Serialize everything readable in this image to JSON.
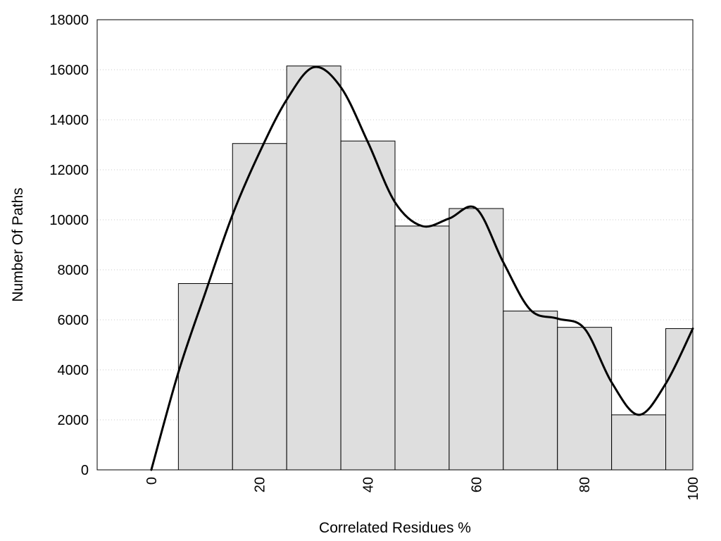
{
  "chart_data": {
    "type": "bar",
    "title": "",
    "xlabel": "Correlated Residues %",
    "ylabel": "Number Of Paths",
    "xlim": [
      -10,
      100
    ],
    "ylim": [
      0,
      18000
    ],
    "x_ticks": [
      "0",
      "20",
      "40",
      "60",
      "80",
      "100"
    ],
    "y_ticks": [
      "0",
      "2000",
      "4000",
      "6000",
      "8000",
      "10000",
      "12000",
      "14000",
      "16000",
      "18000"
    ],
    "grid": "horizontal dotted",
    "legend": "none",
    "bins": [
      {
        "start": 5,
        "end": 15,
        "value": 7450
      },
      {
        "start": 15,
        "end": 25,
        "value": 13050
      },
      {
        "start": 25,
        "end": 35,
        "value": 16150
      },
      {
        "start": 35,
        "end": 45,
        "value": 13150
      },
      {
        "start": 45,
        "end": 55,
        "value": 9750
      },
      {
        "start": 55,
        "end": 65,
        "value": 10450
      },
      {
        "start": 65,
        "end": 75,
        "value": 6350
      },
      {
        "start": 75,
        "end": 85,
        "value": 5700
      },
      {
        "start": 85,
        "end": 95,
        "value": 2200
      },
      {
        "start": 95,
        "end": 100,
        "value": 5650
      }
    ],
    "curve": {
      "x": [
        0,
        5,
        10,
        15,
        20,
        25,
        30,
        35,
        40,
        45,
        50,
        55,
        60,
        65,
        70,
        75,
        80,
        85,
        90,
        95,
        100
      ],
      "y": [
        0,
        3900,
        7100,
        10200,
        12700,
        14800,
        16100,
        15300,
        13100,
        10700,
        9750,
        10050,
        10450,
        8300,
        6400,
        6050,
        5650,
        3500,
        2200,
        3450,
        5650
      ]
    },
    "colors": {
      "bar_fill": "#dedede",
      "bar_stroke": "#000000",
      "curve": "#000000",
      "grid": "#c8c8c8"
    }
  }
}
